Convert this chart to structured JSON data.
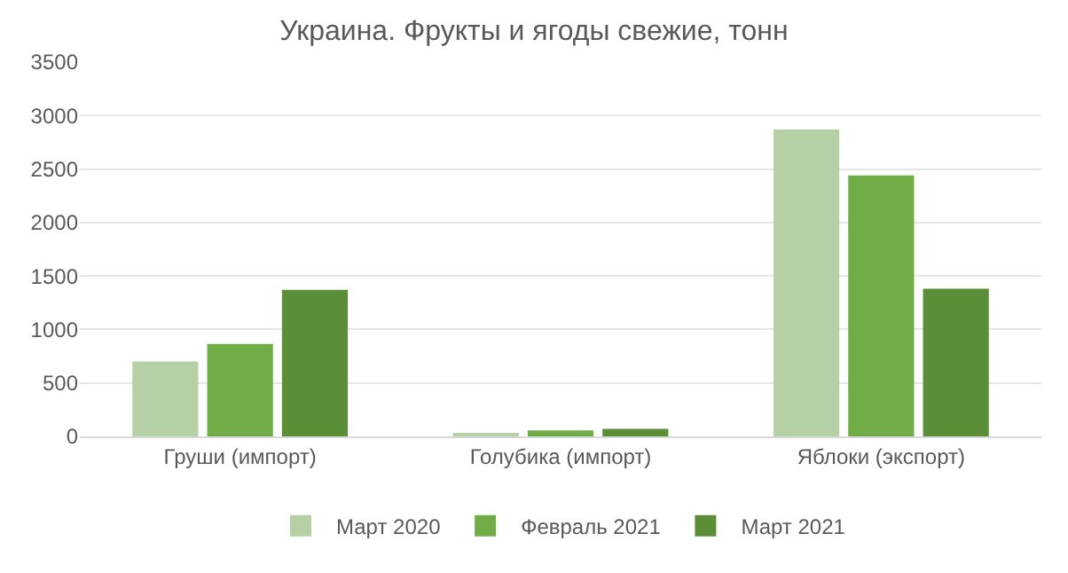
{
  "chart_data": {
    "type": "bar",
    "title": "Украина. Фрукты и ягоды свежие, тонн",
    "categories": [
      "Груши (импорт)",
      "Голубика (импорт)",
      "Яблоки (экспорт)"
    ],
    "series": [
      {
        "name": "Март 2020",
        "color": "#b5d0a5",
        "values": [
          700,
          25,
          2870
        ]
      },
      {
        "name": "Февраль 2021",
        "color": "#70ad47",
        "values": [
          865,
          55,
          2440
        ]
      },
      {
        "name": "Март 2021",
        "color": "#5a8f38",
        "values": [
          1370,
          70,
          1380
        ]
      }
    ],
    "ylim": [
      0,
      3500
    ],
    "yticks": [
      0,
      500,
      1000,
      1500,
      2000,
      2500,
      3000,
      3500
    ],
    "grid": "y",
    "legend": "bottom"
  }
}
